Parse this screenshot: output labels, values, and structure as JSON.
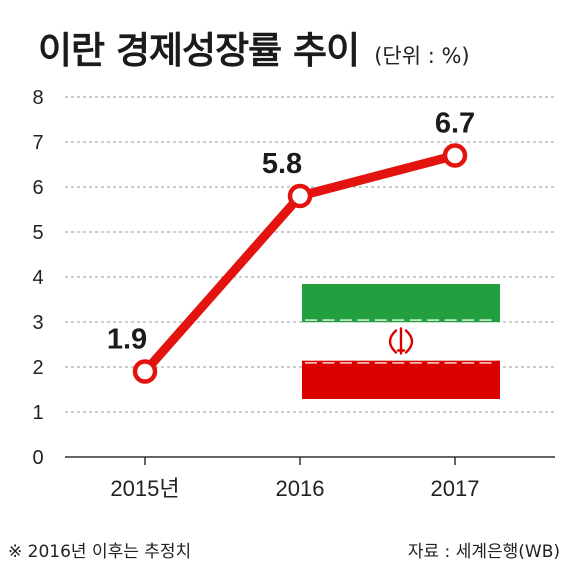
{
  "header": {
    "title": "이란 경제성장률 추이",
    "unit": "(단위 : %)"
  },
  "chart_data": {
    "type": "line",
    "title": "이란 경제성장률 추이",
    "unit": "(단위 : %)",
    "categories": [
      "2015년",
      "2016",
      "2017"
    ],
    "series": [
      {
        "values": [
          1.9,
          5.8,
          6.7
        ],
        "labels": [
          "1.9",
          "5.8",
          "6.7"
        ],
        "color": "#e3140f"
      }
    ],
    "ylim": [
      0,
      8
    ],
    "yticks": [
      "0",
      "1",
      "2",
      "3",
      "4",
      "5",
      "6",
      "7",
      "8"
    ],
    "grid": true,
    "grid_style": "dashed"
  },
  "flag": {
    "name": "iran-flag",
    "colors": {
      "green": "#239f40",
      "white": "#ffffff",
      "red": "#da0000"
    }
  },
  "footer": {
    "note": "※ 2016년 이후는 추정치",
    "source": "자료 : 세계은행(WB)"
  }
}
